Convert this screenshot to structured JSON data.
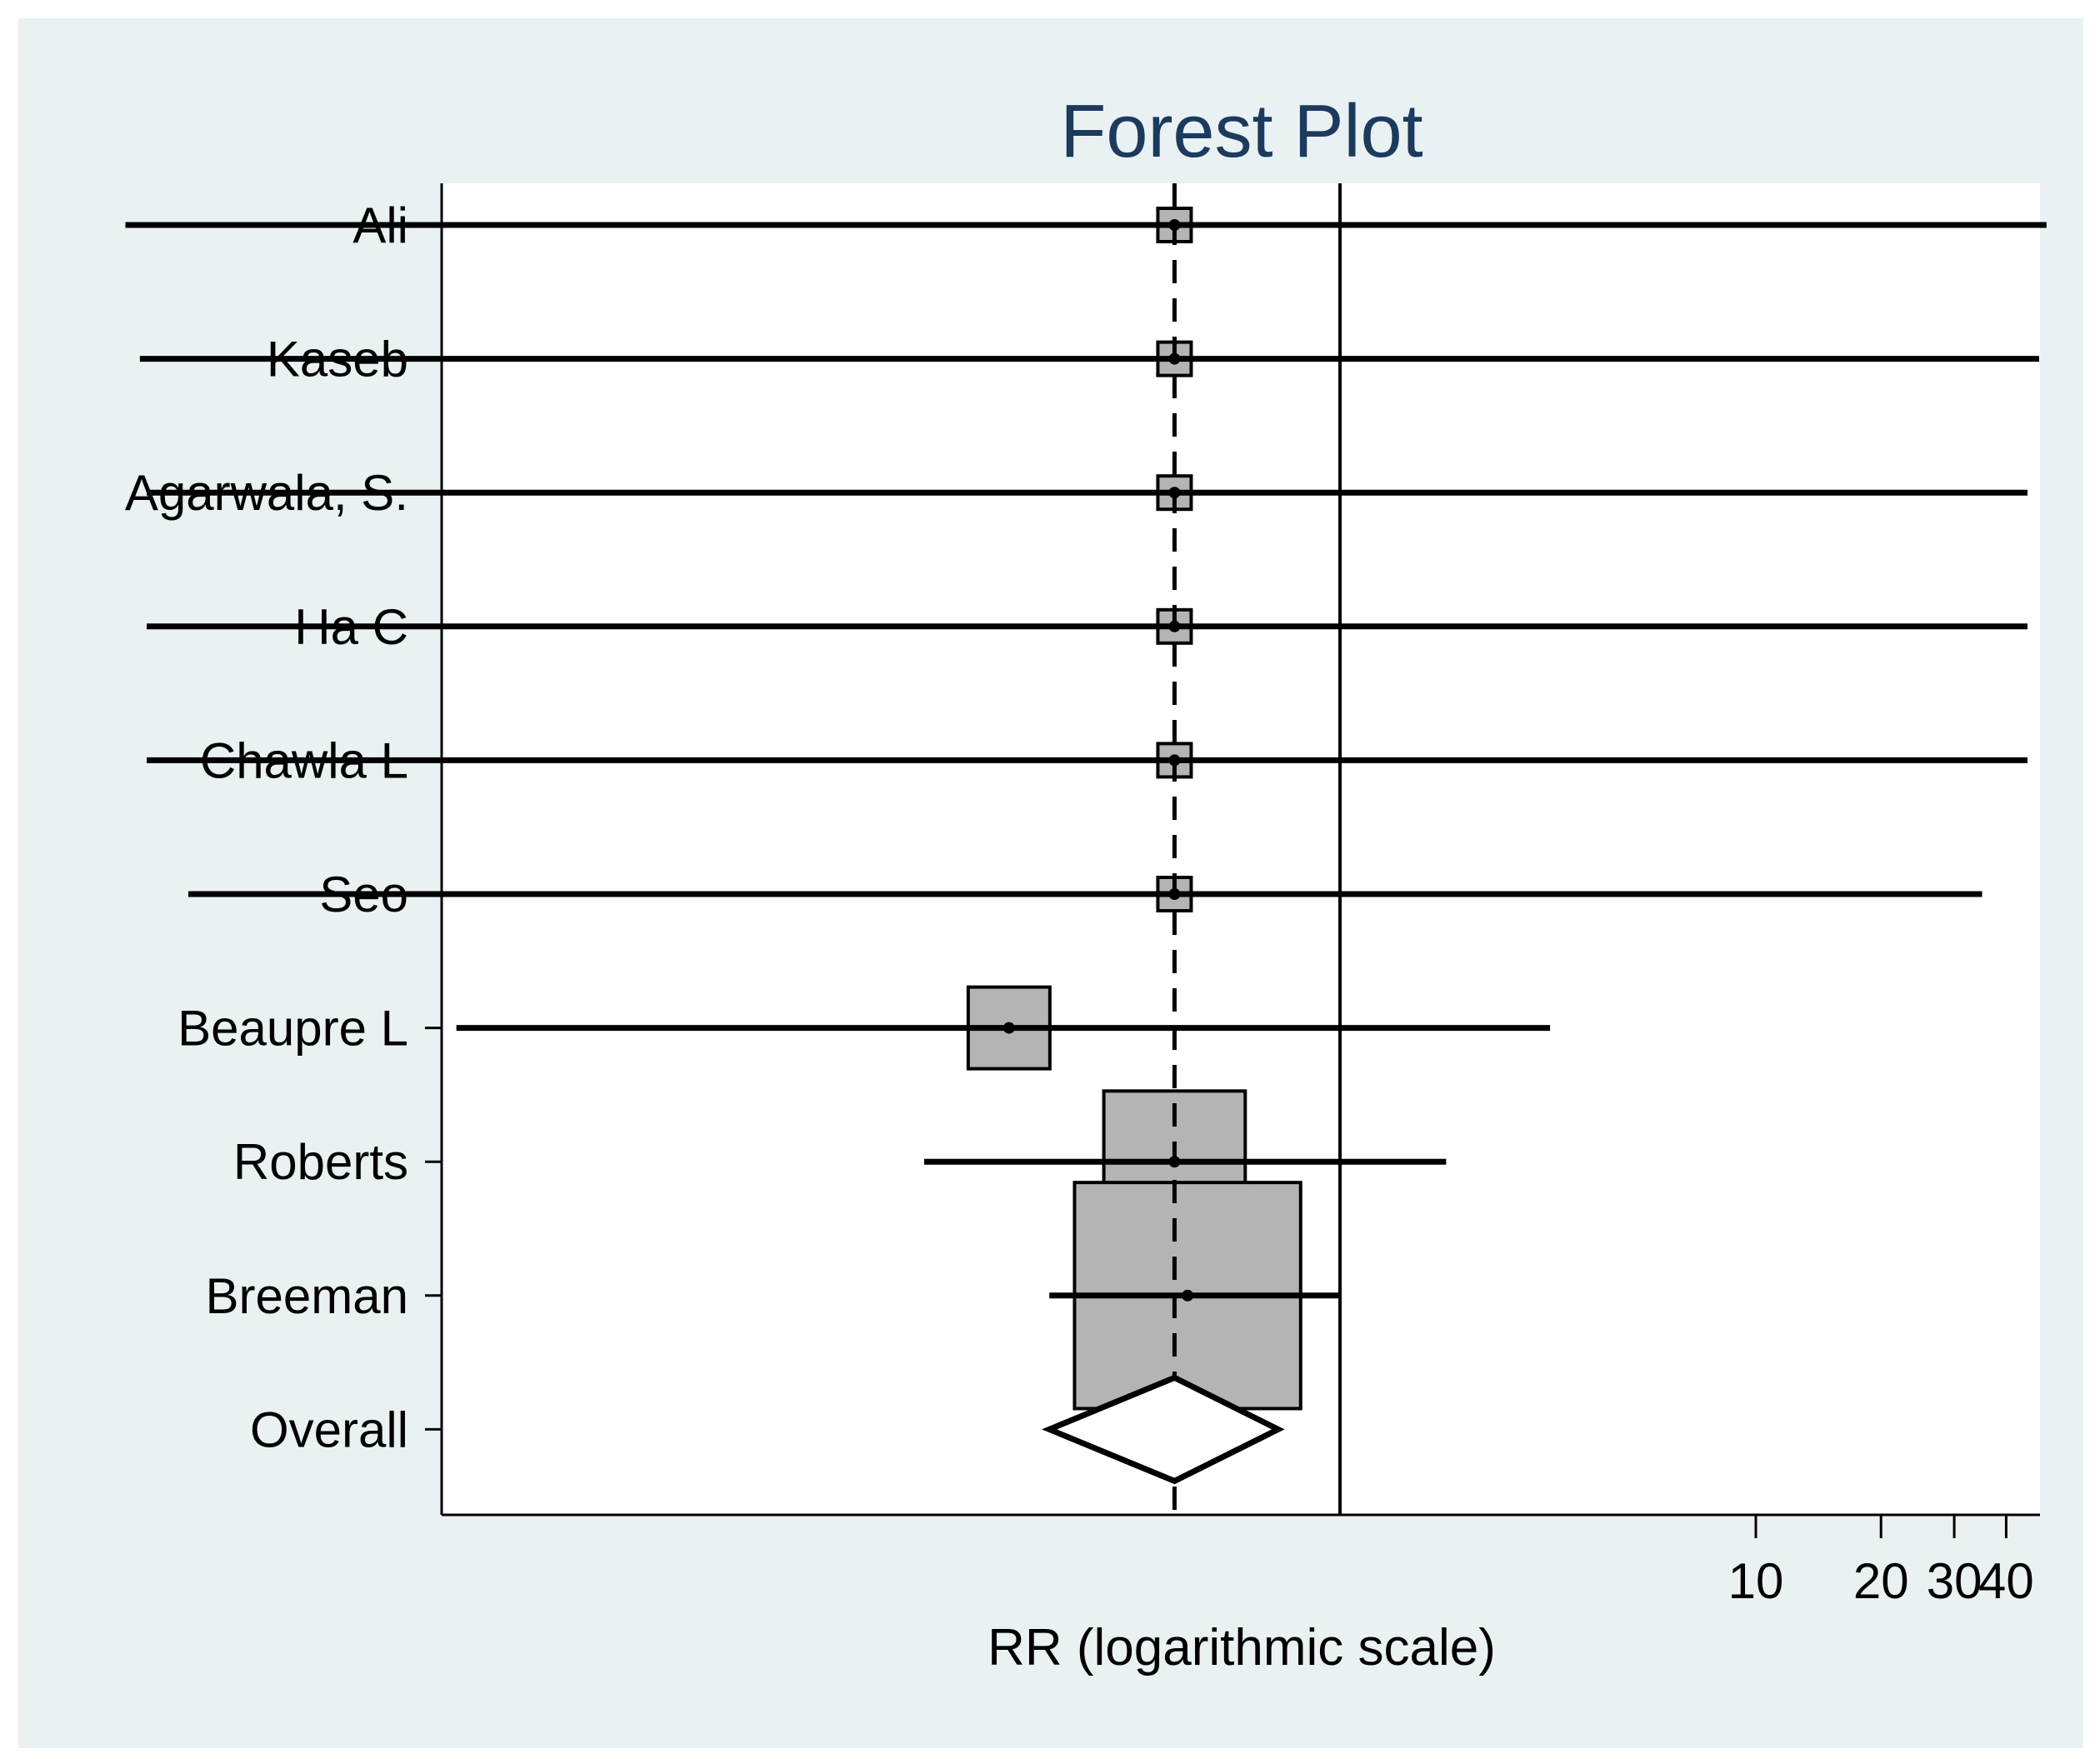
{
  "chart_data": {
    "type": "forest",
    "title": "Forest Plot",
    "xlabel": "RR (logarithmic scale)",
    "x_scale": "log",
    "x_ticks": [
      10,
      20,
      30,
      40
    ],
    "x_tick_labels": [
      "10",
      "20",
      "30",
      "40"
    ],
    "xlim": [
      0.0011,
      55
    ],
    "null_line": 1,
    "pooled_line": 0.4,
    "studies": [
      {
        "name": "Ali",
        "rr": 0.4,
        "ci": [
          0.0012,
          50
        ],
        "weight": 1
      },
      {
        "name": "Kaseb",
        "rr": 0.4,
        "ci": [
          0.0013,
          48
        ],
        "weight": 1
      },
      {
        "name": "Agarwala, S.",
        "rr": 0.4,
        "ci": [
          0.00135,
          45
        ],
        "weight": 1
      },
      {
        "name": "Ha C",
        "rr": 0.4,
        "ci": [
          0.00135,
          45
        ],
        "weight": 1
      },
      {
        "name": "Chawla L",
        "rr": 0.4,
        "ci": [
          0.00135,
          45
        ],
        "weight": 1
      },
      {
        "name": "Seo",
        "rr": 0.4,
        "ci": [
          0.0017,
          35
        ],
        "weight": 1
      },
      {
        "name": "Beaupre L",
        "rr": 0.16,
        "ci": [
          0.0075,
          3.2
        ],
        "weight": 6
      },
      {
        "name": "Roberts",
        "rr": 0.4,
        "ci": [
          0.1,
          1.8
        ],
        "weight": 18
      },
      {
        "name": "Breeman",
        "rr": 0.43,
        "ci": [
          0.2,
          1.0
        ],
        "weight": 46
      }
    ],
    "overall": {
      "name": "Overall",
      "rr": 0.4,
      "ci": [
        0.2,
        0.71
      ]
    }
  }
}
